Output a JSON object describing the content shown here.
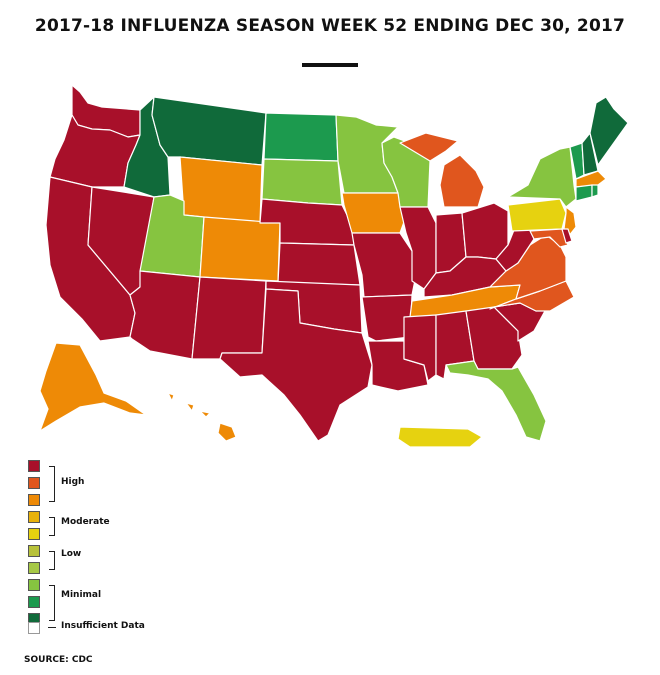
{
  "title": "2017-18 INFLUENZA SEASON WEEK 52 ENDING DEC 30, 2017",
  "source": "SOURCE: CDC",
  "legend": {
    "high": "High",
    "moderate": "Moderate",
    "low": "Low",
    "minimal": "Minimal",
    "insufficient": "Insufficient Data",
    "colors": [
      "#a8102a",
      "#e0561e",
      "#ee8a06",
      "#e8b20c",
      "#e6d210",
      "#b8c23a",
      "#a6c846",
      "#86c440",
      "#1c9a4e",
      "#106a3a",
      "#ffffff"
    ]
  },
  "level_colors": {
    "high_10": "#a8102a",
    "high_9": "#e0561e",
    "high_8": "#ee8a06",
    "moderate_7": "#e8b20c",
    "moderate_6": "#e6d210",
    "minimal_3": "#86c440",
    "minimal_2": "#1c9a4e",
    "minimal_1": "#106a3a"
  },
  "states": [
    {
      "name": "WA",
      "level": "high_10"
    },
    {
      "name": "OR",
      "level": "high_10"
    },
    {
      "name": "CA",
      "level": "high_10"
    },
    {
      "name": "NV",
      "level": "high_10"
    },
    {
      "name": "ID",
      "level": "minimal_1"
    },
    {
      "name": "MT",
      "level": "minimal_1"
    },
    {
      "name": "WY",
      "level": "high_8"
    },
    {
      "name": "UT",
      "level": "minimal_3"
    },
    {
      "name": "AZ",
      "level": "high_10"
    },
    {
      "name": "CO",
      "level": "high_8"
    },
    {
      "name": "NM",
      "level": "high_10"
    },
    {
      "name": "ND",
      "level": "minimal_2"
    },
    {
      "name": "SD",
      "level": "minimal_3"
    },
    {
      "name": "NE",
      "level": "high_10"
    },
    {
      "name": "KS",
      "level": "high_10"
    },
    {
      "name": "OK",
      "level": "high_10"
    },
    {
      "name": "TX",
      "level": "high_10"
    },
    {
      "name": "MN",
      "level": "minimal_3"
    },
    {
      "name": "IA",
      "level": "high_8"
    },
    {
      "name": "MO",
      "level": "high_10"
    },
    {
      "name": "AR",
      "level": "high_10"
    },
    {
      "name": "LA",
      "level": "high_10"
    },
    {
      "name": "WI",
      "level": "minimal_3"
    },
    {
      "name": "IL",
      "level": "high_10"
    },
    {
      "name": "MI",
      "level": "high_9"
    },
    {
      "name": "IN",
      "level": "high_10"
    },
    {
      "name": "OH",
      "level": "high_10"
    },
    {
      "name": "KY",
      "level": "high_10"
    },
    {
      "name": "TN",
      "level": "high_8"
    },
    {
      "name": "MS",
      "level": "high_10"
    },
    {
      "name": "AL",
      "level": "high_10"
    },
    {
      "name": "GA",
      "level": "high_10"
    },
    {
      "name": "FL",
      "level": "minimal_3"
    },
    {
      "name": "SC",
      "level": "high_10"
    },
    {
      "name": "NC",
      "level": "high_9"
    },
    {
      "name": "VA",
      "level": "high_9"
    },
    {
      "name": "WV",
      "level": "high_10"
    },
    {
      "name": "PA",
      "level": "moderate_6"
    },
    {
      "name": "NY",
      "level": "minimal_3"
    },
    {
      "name": "NJ",
      "level": "high_8"
    },
    {
      "name": "MD",
      "level": "high_9"
    },
    {
      "name": "DE",
      "level": "high_10"
    },
    {
      "name": "VT",
      "level": "minimal_2"
    },
    {
      "name": "NH",
      "level": "minimal_1"
    },
    {
      "name": "ME",
      "level": "minimal_1"
    },
    {
      "name": "MA",
      "level": "high_8"
    },
    {
      "name": "CT",
      "level": "minimal_2"
    },
    {
      "name": "RI",
      "level": "minimal_2"
    },
    {
      "name": "AK",
      "level": "high_8"
    },
    {
      "name": "HI",
      "level": "high_8"
    },
    {
      "name": "PR",
      "level": "moderate_6"
    }
  ]
}
